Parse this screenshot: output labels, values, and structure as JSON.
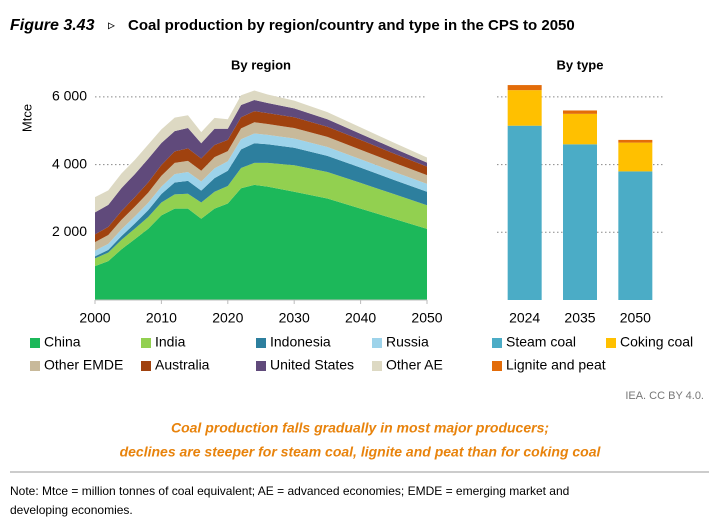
{
  "figure": {
    "label": "Figure 3.43",
    "title": "Coal production by region/country and type in the CPS to 2050",
    "source": "IEA. CC BY 4.0.",
    "caption": [
      "Coal production falls gradually in most major producers;",
      "declines are steeper for steam coal, lignite and peat than for coking coal"
    ],
    "note": [
      "Note: Mtce = million tonnes of coal equivalent; AE = advanced economies; EMDE = emerging market and",
      "developing economies."
    ]
  },
  "chart_data": [
    {
      "type": "area",
      "title": "By region",
      "y_label": "Mtce",
      "x": [
        2000,
        2002,
        2004,
        2006,
        2008,
        2010,
        2012,
        2014,
        2016,
        2018,
        2020,
        2022,
        2024,
        2026,
        2030,
        2035,
        2040,
        2045,
        2050
      ],
      "xlim": [
        2000,
        2050
      ],
      "xticks": [
        2000,
        2010,
        2020,
        2030,
        2040,
        2050
      ],
      "ylim": [
        0,
        6500
      ],
      "yticks": [
        {
          "value": 2000,
          "label": "2 000"
        },
        {
          "value": 4000,
          "label": "4 000"
        },
        {
          "value": 6000,
          "label": "6 000"
        }
      ],
      "grid": true,
      "series": [
        {
          "name": "China",
          "color": "#1cb85a",
          "values": [
            1000,
            1150,
            1500,
            1800,
            2100,
            2500,
            2700,
            2700,
            2400,
            2700,
            2850,
            3300,
            3400,
            3350,
            3200,
            3000,
            2700,
            2400,
            2100
          ]
        },
        {
          "name": "India",
          "color": "#92d050",
          "values": [
            230,
            250,
            280,
            310,
            350,
            380,
            420,
            440,
            480,
            500,
            520,
            600,
            650,
            700,
            780,
            780,
            760,
            730,
            700
          ]
        },
        {
          "name": "Indonesia",
          "color": "#2d7f9e",
          "values": [
            60,
            80,
            110,
            150,
            200,
            250,
            350,
            380,
            350,
            400,
            450,
            550,
            580,
            550,
            520,
            480,
            450,
            420,
            400
          ]
        },
        {
          "name": "Russia",
          "color": "#9dd3ea",
          "values": [
            170,
            180,
            200,
            210,
            220,
            220,
            250,
            260,
            270,
            290,
            280,
            300,
            290,
            280,
            270,
            260,
            250,
            240,
            230
          ]
        },
        {
          "name": "Other EMDE",
          "color": "#c8b99a",
          "values": [
            250,
            260,
            280,
            290,
            300,
            320,
            330,
            330,
            320,
            330,
            300,
            320,
            330,
            320,
            310,
            300,
            280,
            270,
            260
          ]
        },
        {
          "name": "Australia",
          "color": "#a0420f",
          "values": [
            230,
            240,
            260,
            280,
            300,
            320,
            340,
            370,
            360,
            360,
            330,
            330,
            330,
            320,
            320,
            300,
            290,
            270,
            250
          ]
        },
        {
          "name": "United States",
          "color": "#604a7b",
          "values": [
            650,
            650,
            680,
            680,
            700,
            650,
            600,
            600,
            450,
            480,
            330,
            360,
            330,
            300,
            260,
            220,
            180,
            150,
            120
          ]
        },
        {
          "name": "Other AE",
          "color": "#ddd9c3",
          "values": [
            450,
            430,
            430,
            420,
            420,
            400,
            400,
            380,
            330,
            320,
            280,
            290,
            280,
            250,
            230,
            210,
            190,
            170,
            150
          ]
        }
      ]
    },
    {
      "type": "bar",
      "title": "By type",
      "categories": [
        "2024",
        "2035",
        "2050"
      ],
      "ylim": [
        0,
        6500
      ],
      "yticks": [
        2000,
        4000,
        6000
      ],
      "grid": true,
      "series": [
        {
          "name": "Steam coal",
          "color": "#4bacc6",
          "values": [
            5150,
            4600,
            3800
          ]
        },
        {
          "name": "Coking coal",
          "color": "#ffc000",
          "values": [
            1050,
            900,
            850
          ]
        },
        {
          "name": "Lignite and peat",
          "color": "#e36c09",
          "values": [
            150,
            100,
            80
          ]
        }
      ]
    }
  ]
}
